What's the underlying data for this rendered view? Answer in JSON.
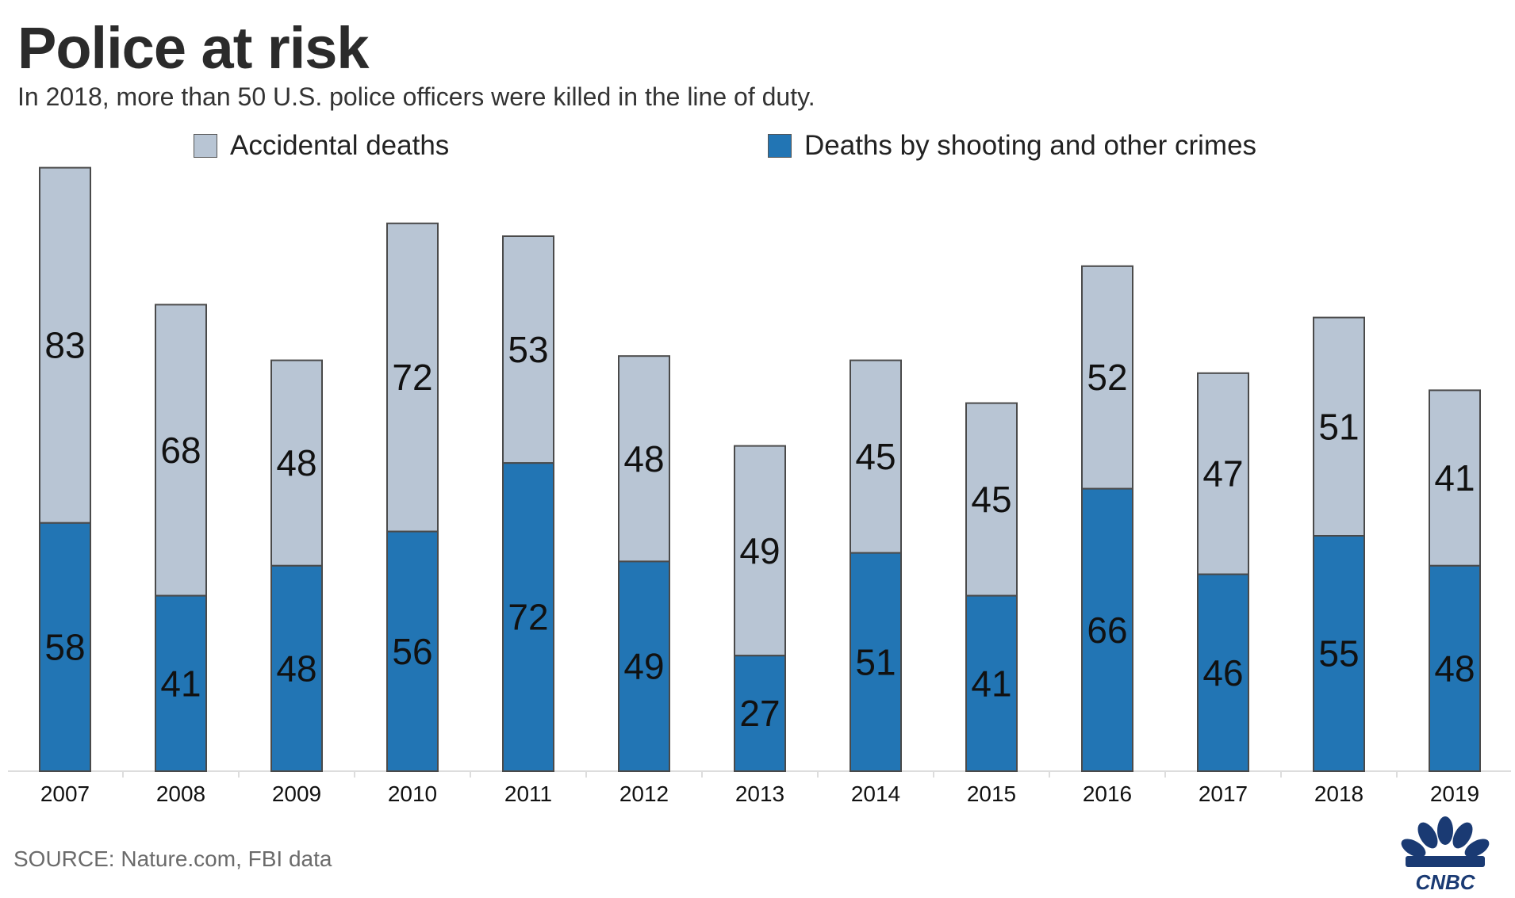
{
  "header": {
    "title": "Police at risk",
    "subtitle": "In 2018, more than 50 U.S. police officers were killed in the line of duty."
  },
  "footer": {
    "source": "SOURCE: Nature.com, FBI data",
    "logo_text": "CNBC"
  },
  "colors": {
    "accidental": "#b8c5d4",
    "crimes": "#2275b4",
    "bar_stroke": "#4a4a4a",
    "axis": "#dddddd"
  },
  "chart_data": {
    "type": "bar",
    "stacked": true,
    "title": "Police at risk",
    "subtitle": "In 2018, more than 50 U.S. police officers were killed in the line of duty.",
    "categories": [
      "2007",
      "2008",
      "2009",
      "2010",
      "2011",
      "2012",
      "2013",
      "2014",
      "2015",
      "2016",
      "2017",
      "2018",
      "2019"
    ],
    "series": [
      {
        "name": "Deaths by shooting and other crimes",
        "values": [
          58,
          41,
          48,
          56,
          72,
          49,
          27,
          51,
          41,
          66,
          46,
          55,
          48
        ]
      },
      {
        "name": "Accidental deaths",
        "values": [
          83,
          68,
          48,
          72,
          53,
          48,
          49,
          45,
          45,
          52,
          47,
          51,
          41
        ]
      }
    ],
    "legend_position": "top",
    "data_labels": true,
    "grid": false,
    "ylim": [
      0,
      141
    ]
  }
}
